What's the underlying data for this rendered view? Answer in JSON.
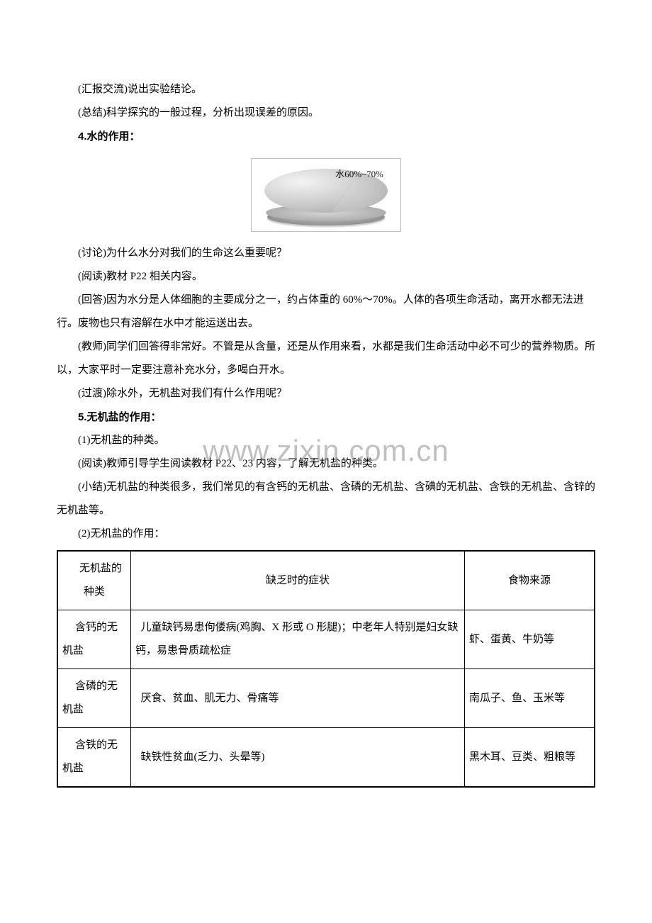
{
  "paragraphs": {
    "p1": "(汇报交流)说出实验结论。",
    "p2": "(总结)科学探究的一般过程，分析出现误差的原因。",
    "h1": "4.水的作用：",
    "pie_label": "水60%~70%",
    "p3": "(讨论)为什么水分对我们的生命这么重要呢？",
    "p4": "(阅读)教材 P22 相关内容。",
    "p5": "(回答)因为水分是人体细胞的主要成分之一，约占体重的 60%～70%。人体的各项生命活动，离开水都无法进行。废物也只有溶解在水中才能运送出去。",
    "p6": "(教师)同学们回答得非常好。不管是从含量，还是从作用来看，水都是我们生命活动中必不可少的营养物质。所以，大家平时一定要注意补充水分，多喝白开水。",
    "p7": "(过渡)除水外，无机盐对我们有什么作用呢？",
    "h2": "5.无机盐的作用：",
    "p8": "(1)无机盐的种类。",
    "p9": "(阅读)教师引导学生阅读教材 P22、23 内容，了解无机盐的种类。",
    "p10": "(小结)无机盐的种类很多，我们常见的有含钙的无机盐、含磷的无机盐、含碘的无机盐、含铁的无机盐、含锌的无机盐等。",
    "p11": "(2)无机盐的作用："
  },
  "table": {
    "headers": {
      "c1": "无机盐的种类",
      "c2": "缺乏时的症状",
      "c3": "食物来源"
    },
    "rows": [
      {
        "type": "含钙的无机盐",
        "symptom": "儿童缺钙易患佝偻病(鸡胸、X 形或 O 形腿)；中老年人特别是妇女缺钙，易患骨质疏松症",
        "source": "虾、蛋黄、牛奶等"
      },
      {
        "type": "含磷的无机盐",
        "symptom": "厌食、贫血、肌无力、骨痛等",
        "source": "南瓜子、鱼、玉米等"
      },
      {
        "type": "含铁的无机盐",
        "symptom": "缺铁性贫血(乏力、头晕等)",
        "source": "黑木耳、豆类、粗粮等"
      }
    ]
  },
  "watermark": "www.zixin.com.cn",
  "colors": {
    "text": "#000000",
    "border": "#000000",
    "watermark": "rgba(140,140,140,0.55)",
    "background": "#ffffff"
  }
}
